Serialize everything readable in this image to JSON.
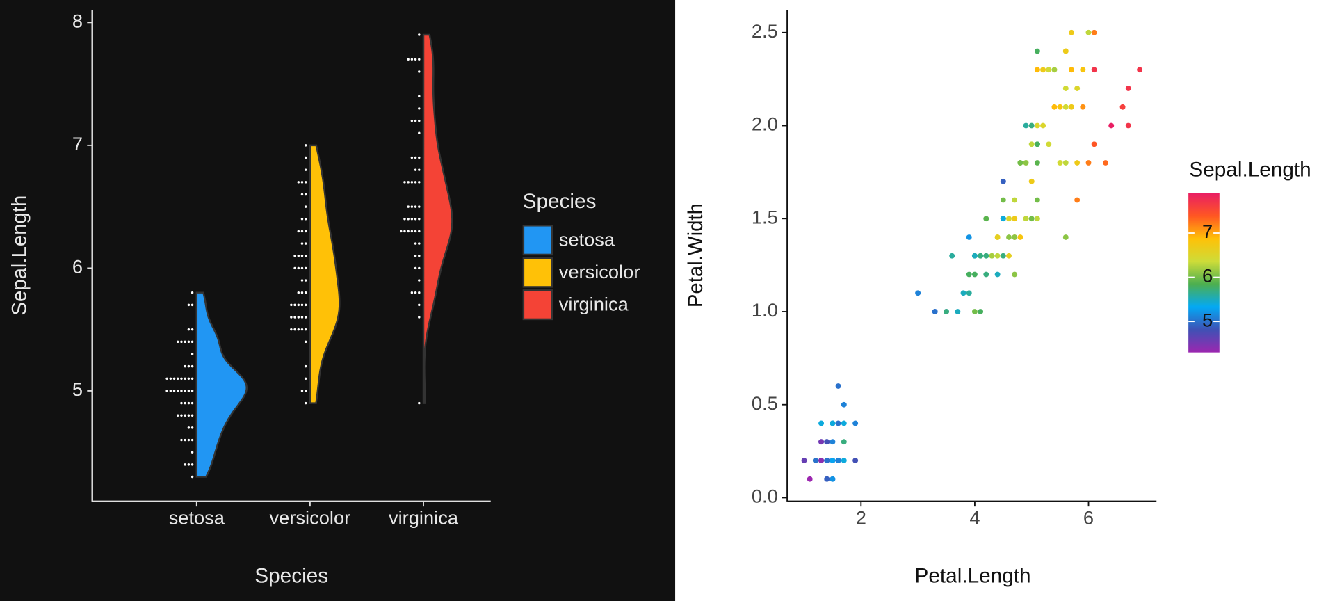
{
  "chart_data": [
    {
      "type": "violin",
      "xlabel": "Species",
      "ylabel": "Sepal.Length",
      "categories": [
        "setosa",
        "versicolor",
        "virginica"
      ],
      "legend_title": "Species",
      "legend": "right",
      "ylim": [
        4.1,
        8.1
      ],
      "yticks": [
        5,
        6,
        7,
        8
      ],
      "series": [
        {
          "name": "setosa",
          "color": "#2196F3",
          "values": [
            5.1,
            4.9,
            4.7,
            4.6,
            5.0,
            5.4,
            4.6,
            5.0,
            4.4,
            4.9,
            5.4,
            4.8,
            4.8,
            4.3,
            5.8,
            5.7,
            5.4,
            5.1,
            5.7,
            5.1,
            5.4,
            5.1,
            4.6,
            5.1,
            4.8,
            5.0,
            5.0,
            5.2,
            5.2,
            4.7,
            4.8,
            5.4,
            5.2,
            5.5,
            4.9,
            5.0,
            5.5,
            4.9,
            4.4,
            5.1,
            5.0,
            4.5,
            4.4,
            5.0,
            5.1,
            4.8,
            5.1,
            4.6,
            5.3,
            5.0
          ]
        },
        {
          "name": "versicolor",
          "color": "#FFC107",
          "values": [
            7.0,
            6.4,
            6.9,
            5.5,
            6.5,
            5.7,
            6.3,
            4.9,
            6.6,
            5.2,
            5.0,
            5.9,
            6.0,
            6.1,
            5.6,
            6.7,
            5.6,
            5.8,
            6.2,
            5.6,
            5.9,
            6.1,
            6.3,
            6.1,
            6.4,
            6.6,
            6.8,
            6.7,
            6.0,
            5.7,
            5.5,
            5.5,
            5.8,
            6.0,
            5.4,
            6.0,
            6.7,
            6.3,
            5.6,
            5.5,
            5.5,
            6.1,
            5.8,
            5.0,
            5.6,
            5.7,
            5.7,
            6.2,
            5.1,
            5.7
          ]
        },
        {
          "name": "virginica",
          "color": "#F44336",
          "values": [
            6.3,
            5.8,
            7.1,
            6.3,
            6.5,
            7.6,
            4.9,
            7.3,
            6.7,
            7.2,
            6.5,
            6.4,
            6.8,
            5.7,
            5.8,
            6.4,
            6.5,
            7.7,
            7.7,
            6.0,
            6.9,
            5.6,
            7.7,
            6.3,
            6.7,
            7.2,
            6.2,
            6.1,
            6.4,
            7.2,
            7.4,
            7.9,
            6.4,
            6.3,
            6.1,
            7.7,
            6.3,
            6.4,
            6.0,
            6.9,
            6.7,
            6.9,
            5.8,
            6.8,
            6.7,
            6.7,
            6.3,
            6.5,
            6.2,
            5.9
          ]
        }
      ]
    },
    {
      "type": "scatter",
      "xlabel": "Petal.Length",
      "ylabel": "Petal.Width",
      "xlim": [
        0.705,
        7.195
      ],
      "xticks": [
        2,
        4,
        6
      ],
      "ylim": [
        -0.02,
        2.62
      ],
      "yticks": [
        {
          "value": 0,
          "label": "0.0"
        },
        {
          "value": 0.5,
          "label": "0.5"
        },
        {
          "value": 1,
          "label": "1.0"
        },
        {
          "value": 1.5,
          "label": "1.5"
        },
        {
          "value": 2,
          "label": "2.0"
        },
        {
          "value": 2.5,
          "label": "2.5"
        }
      ],
      "legend_title": "Sepal.Length",
      "legend": "right",
      "colorlim": [
        4.3,
        7.9
      ],
      "colorticks": [
        5,
        6,
        7
      ],
      "colors": [
        "#9C27B0",
        "#3F51B5",
        "#03A9F4",
        "#4CAF50",
        "#CDDC39",
        "#FFC107",
        "#FF5722",
        "#E91E63"
      ],
      "x": [
        1.4,
        1.4,
        1.3,
        1.5,
        1.4,
        1.7,
        1.4,
        1.5,
        1.4,
        1.5,
        1.5,
        1.6,
        1.4,
        1.1,
        1.2,
        1.5,
        1.3,
        1.4,
        1.7,
        1.5,
        1.7,
        1.5,
        1.0,
        1.7,
        1.9,
        1.6,
        1.6,
        1.5,
        1.4,
        1.6,
        1.6,
        1.5,
        1.5,
        1.4,
        1.5,
        1.2,
        1.3,
        1.4,
        1.3,
        1.5,
        1.3,
        1.3,
        1.3,
        1.6,
        1.9,
        1.4,
        1.6,
        1.4,
        1.5,
        1.4,
        4.7,
        4.5,
        4.9,
        4.0,
        4.6,
        4.5,
        4.7,
        3.3,
        4.6,
        3.9,
        3.5,
        4.2,
        4.0,
        4.7,
        3.6,
        4.4,
        4.5,
        4.1,
        4.5,
        3.9,
        4.8,
        4.0,
        4.9,
        4.7,
        4.3,
        4.4,
        4.8,
        5.0,
        4.5,
        3.5,
        3.8,
        3.7,
        3.9,
        5.1,
        4.5,
        4.5,
        4.7,
        4.4,
        4.1,
        4.0,
        4.4,
        4.6,
        4.0,
        3.3,
        4.2,
        4.2,
        4.2,
        4.3,
        3.0,
        4.1,
        6.0,
        5.1,
        5.9,
        5.6,
        5.8,
        6.6,
        4.5,
        6.3,
        5.8,
        6.1,
        5.1,
        5.3,
        5.5,
        5.0,
        5.1,
        5.3,
        5.5,
        6.7,
        6.9,
        5.0,
        5.7,
        4.9,
        6.7,
        4.9,
        5.7,
        6.0,
        4.8,
        4.9,
        5.6,
        5.8,
        6.1,
        6.4,
        5.6,
        5.1,
        5.6,
        6.1,
        5.6,
        5.5,
        4.8,
        5.4,
        5.6,
        5.1,
        5.1,
        5.9,
        5.7,
        5.2,
        5.0,
        5.2,
        5.4,
        5.1
      ],
      "values": [
        0.2,
        0.2,
        0.2,
        0.2,
        0.2,
        0.4,
        0.3,
        0.2,
        0.2,
        0.1,
        0.2,
        0.2,
        0.1,
        0.1,
        0.2,
        0.4,
        0.4,
        0.3,
        0.3,
        0.3,
        0.2,
        0.4,
        0.2,
        0.5,
        0.2,
        0.2,
        0.4,
        0.2,
        0.2,
        0.2,
        0.2,
        0.4,
        0.1,
        0.2,
        0.2,
        0.2,
        0.2,
        0.1,
        0.2,
        0.2,
        0.3,
        0.3,
        0.2,
        0.6,
        0.4,
        0.3,
        0.2,
        0.2,
        0.2,
        0.2,
        1.4,
        1.5,
        1.5,
        1.3,
        1.5,
        1.3,
        1.6,
        1.0,
        1.3,
        1.4,
        1.0,
        1.5,
        1.0,
        1.4,
        1.3,
        1.4,
        1.5,
        1.0,
        1.5,
        1.1,
        1.8,
        1.3,
        1.5,
        1.2,
        1.3,
        1.4,
        1.4,
        1.7,
        1.5,
        1.0,
        1.1,
        1.0,
        1.2,
        1.6,
        1.5,
        1.6,
        1.5,
        1.3,
        1.3,
        1.3,
        1.2,
        1.4,
        1.2,
        1.0,
        1.3,
        1.2,
        1.3,
        1.3,
        1.1,
        1.3,
        2.5,
        1.9,
        2.1,
        1.8,
        2.2,
        2.1,
        1.7,
        1.8,
        1.8,
        2.5,
        2.0,
        1.9,
        2.1,
        2.0,
        2.4,
        2.3,
        1.8,
        2.2,
        2.3,
        1.5,
        2.3,
        2.0,
        2.0,
        1.8,
        2.1,
        1.8,
        1.8,
        1.8,
        2.1,
        1.6,
        1.9,
        2.0,
        2.2,
        1.5,
        1.4,
        2.3,
        2.4,
        1.8,
        1.8,
        2.1,
        2.4,
        2.3,
        1.9,
        2.3,
        2.5,
        2.3,
        1.9,
        2.0,
        2.3,
        1.8
      ],
      "color_values": [
        5.1,
        4.9,
        4.7,
        4.6,
        5.0,
        5.4,
        4.6,
        5.0,
        4.4,
        4.9,
        5.4,
        4.8,
        4.8,
        4.3,
        5.8,
        5.7,
        5.4,
        5.1,
        5.7,
        5.1,
        5.4,
        5.1,
        4.6,
        5.1,
        4.8,
        5.0,
        5.0,
        5.2,
        5.2,
        4.7,
        4.8,
        5.4,
        5.2,
        5.5,
        4.9,
        5.0,
        5.5,
        4.9,
        4.4,
        5.1,
        5.0,
        4.5,
        4.4,
        5.0,
        5.1,
        4.8,
        5.1,
        4.6,
        5.3,
        5.0,
        7.0,
        6.4,
        6.9,
        5.5,
        6.5,
        5.7,
        6.3,
        4.9,
        6.6,
        5.2,
        5.0,
        5.9,
        6.0,
        6.1,
        5.6,
        6.7,
        5.6,
        5.8,
        6.2,
        5.6,
        5.9,
        6.1,
        6.3,
        6.1,
        6.4,
        6.6,
        6.8,
        6.7,
        6.0,
        5.7,
        5.5,
        5.5,
        5.8,
        6.0,
        5.4,
        6.0,
        6.7,
        6.3,
        5.6,
        5.5,
        5.5,
        6.1,
        5.8,
        5.0,
        5.6,
        5.7,
        5.7,
        6.2,
        5.1,
        5.7,
        6.3,
        5.8,
        7.1,
        6.3,
        6.5,
        7.6,
        4.9,
        7.3,
        6.7,
        7.2,
        6.5,
        6.4,
        6.8,
        5.7,
        5.8,
        6.4,
        6.5,
        7.7,
        7.7,
        6.0,
        6.9,
        5.6,
        7.7,
        6.3,
        6.7,
        7.2,
        6.2,
        6.1,
        6.4,
        7.2,
        7.4,
        7.9,
        6.4,
        6.3,
        6.1,
        7.7,
        6.3,
        6.4,
        6.0,
        6.9,
        6.7,
        6.9,
        5.8,
        6.8,
        6.7,
        6.7,
        6.3,
        6.5,
        6.2,
        5.9
      ]
    }
  ]
}
